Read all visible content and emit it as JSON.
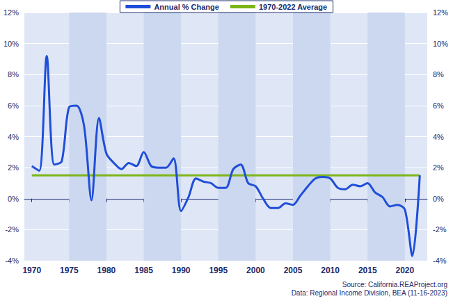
{
  "chart_data": {
    "type": "line",
    "x": [
      1970,
      1971,
      1972,
      1973,
      1974,
      1975,
      1976,
      1977,
      1978,
      1979,
      1980,
      1981,
      1982,
      1983,
      1984,
      1985,
      1986,
      1987,
      1988,
      1989,
      1990,
      1991,
      1992,
      1993,
      1994,
      1995,
      1996,
      1997,
      1998,
      1999,
      2000,
      2001,
      2002,
      2003,
      2004,
      2005,
      2006,
      2007,
      2008,
      2009,
      2010,
      2011,
      2012,
      2013,
      2014,
      2015,
      2016,
      2017,
      2018,
      2019,
      2020,
      2021,
      2022
    ],
    "series": [
      {
        "name": "Annual % Change",
        "color": "#1f4ed8",
        "values": [
          2.1,
          1.8,
          9.2,
          2.2,
          2.4,
          5.9,
          6.0,
          4.7,
          -0.1,
          5.2,
          2.9,
          2.3,
          1.9,
          2.3,
          2.1,
          3.0,
          2.1,
          2.0,
          2.0,
          2.6,
          -0.8,
          0.1,
          1.3,
          1.1,
          1.0,
          0.7,
          0.7,
          1.9,
          2.2,
          1.0,
          0.8,
          0.0,
          -0.6,
          -0.6,
          -0.3,
          -0.4,
          0.2,
          0.8,
          1.3,
          1.4,
          1.3,
          0.7,
          0.6,
          0.9,
          0.8,
          1.0,
          0.4,
          0.1,
          -0.5,
          -0.4,
          -0.7,
          -3.7,
          1.5
        ]
      },
      {
        "name": "1970-2022 Average",
        "color": "#7cb518",
        "values": [
          1.5,
          1.5,
          1.5,
          1.5,
          1.5,
          1.5,
          1.5,
          1.5,
          1.5,
          1.5,
          1.5,
          1.5,
          1.5,
          1.5,
          1.5,
          1.5,
          1.5,
          1.5,
          1.5,
          1.5,
          1.5,
          1.5,
          1.5,
          1.5,
          1.5,
          1.5,
          1.5,
          1.5,
          1.5,
          1.5,
          1.5,
          1.5,
          1.5,
          1.5,
          1.5,
          1.5,
          1.5,
          1.5,
          1.5,
          1.5,
          1.5,
          1.5,
          1.5,
          1.5,
          1.5,
          1.5,
          1.5,
          1.5,
          1.5,
          1.5,
          1.5,
          1.5,
          1.5
        ]
      }
    ],
    "xlim": [
      1969,
      2023
    ],
    "xticks": [
      1970,
      1975,
      1980,
      1985,
      1990,
      1995,
      2000,
      2005,
      2010,
      2015,
      2020
    ],
    "ylim": [
      -4,
      12
    ],
    "yticks": [
      {
        "value": -4,
        "label": "-4%"
      },
      {
        "value": -2,
        "label": "-2%"
      },
      {
        "value": 0,
        "label": "0%"
      },
      {
        "value": 2,
        "label": "2%"
      },
      {
        "value": 4,
        "label": "4%"
      },
      {
        "value": 6,
        "label": "6%"
      },
      {
        "value": 8,
        "label": "8%"
      },
      {
        "value": 10,
        "label": "10%"
      },
      {
        "value": 12,
        "label": "12%"
      }
    ],
    "y2lim": [
      -4,
      12
    ],
    "y2ticks": [
      {
        "value": -4,
        "label": "-4%"
      },
      {
        "value": -2,
        "label": "-2%"
      },
      {
        "value": 0,
        "label": "0%"
      },
      {
        "value": 2,
        "label": "2%"
      },
      {
        "value": 4,
        "label": "4%"
      },
      {
        "value": 6,
        "label": "6%"
      },
      {
        "value": 8,
        "label": "8%"
      },
      {
        "value": 10,
        "label": "10%"
      },
      {
        "value": 12,
        "label": "12%"
      }
    ],
    "grid": true,
    "legend": "top",
    "annotations": [
      "Source: California.REAProject.org",
      "Data: Regional Income Division, BEA (11-16-2023)"
    ]
  }
}
